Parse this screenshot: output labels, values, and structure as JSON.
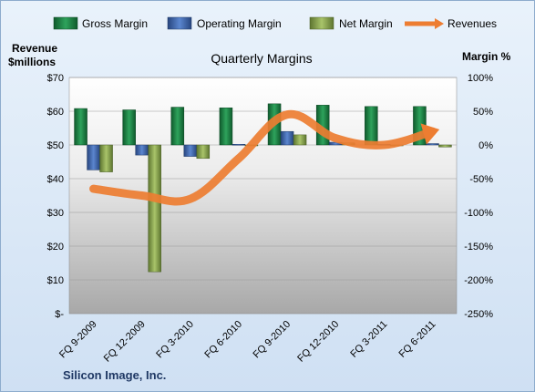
{
  "chart_data": {
    "type": "bar",
    "title": "Quarterly Margins",
    "company": "Silicon Image, Inc.",
    "categories": [
      "FQ 9-2009",
      "FQ 12-2009",
      "FQ 3-2010",
      "FQ 6-2010",
      "FQ 9-2010",
      "FQ 12-2010",
      "FQ 3-2011",
      "FQ 6-2011"
    ],
    "left_axis": {
      "label_line1": "Revenue",
      "label_line2": "$millions",
      "range": [
        0,
        70
      ],
      "ticks": [
        {
          "value": 70,
          "label": "$70"
        },
        {
          "value": 60,
          "label": "$60"
        },
        {
          "value": 50,
          "label": "$50"
        },
        {
          "value": 40,
          "label": "$40"
        },
        {
          "value": 30,
          "label": "$30"
        },
        {
          "value": 20,
          "label": "$20"
        },
        {
          "value": 10,
          "label": "$10"
        },
        {
          "value": 0,
          "label": "$-"
        }
      ]
    },
    "right_axis": {
      "label": "Margin %",
      "range": [
        -250,
        100
      ],
      "ticks": [
        {
          "value": 100,
          "label": "100%"
        },
        {
          "value": 50,
          "label": "50%"
        },
        {
          "value": 0,
          "label": "0%"
        },
        {
          "value": -50,
          "label": "-50%"
        },
        {
          "value": -100,
          "label": "-100%"
        },
        {
          "value": -150,
          "label": "-150%"
        },
        {
          "value": -200,
          "label": "-200%"
        },
        {
          "value": -250,
          "label": "-250%"
        }
      ]
    },
    "series": [
      {
        "name": "Gross Margin",
        "axis": "right",
        "kind": "bar",
        "color": "#1e8449",
        "values": [
          54,
          52,
          56,
          55,
          61,
          59,
          57,
          57
        ]
      },
      {
        "name": "Operating Margin",
        "axis": "right",
        "kind": "bar",
        "color": "#3d66b0",
        "values": [
          -37,
          -15,
          -17,
          1,
          20,
          4,
          1,
          2
        ]
      },
      {
        "name": "Net Margin",
        "axis": "right",
        "kind": "bar",
        "color": "#8faa4e",
        "values": [
          -40,
          -188,
          -20,
          0,
          15,
          3,
          0,
          -3
        ]
      },
      {
        "name": "Revenues",
        "axis": "left",
        "kind": "line",
        "color": "#ed7d31",
        "values": [
          37,
          35,
          34,
          46,
          59,
          52,
          50,
          54
        ]
      }
    ],
    "grid": true,
    "legend_position": "top"
  }
}
